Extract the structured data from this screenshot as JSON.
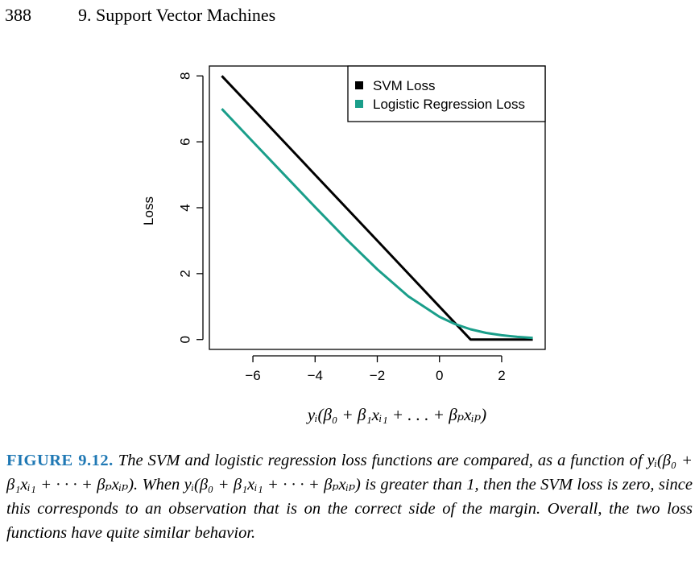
{
  "header": {
    "page_number": "388",
    "chapter_title": "9. Support Vector Machines"
  },
  "chart_data": {
    "type": "line",
    "xlabel": "yᵢ(β₀ + β₁xᵢ₁ + . . . + βₚxᵢₚ)",
    "ylabel": "Loss",
    "xlim": [
      -7.4,
      3.4
    ],
    "ylim": [
      -0.3,
      8.3
    ],
    "xticks": [
      -6,
      -4,
      -2,
      0,
      2
    ],
    "xtick_labels": [
      "−6",
      "−4",
      "−2",
      "0",
      "2"
    ],
    "yticks": [
      0,
      2,
      4,
      6,
      8
    ],
    "ytick_labels": [
      "0",
      "2",
      "4",
      "6",
      "8"
    ],
    "grid": false,
    "legend_position": "top-right",
    "series": [
      {
        "name": "SVM Loss",
        "color": "#000000",
        "x": [
          -7,
          -6,
          -5,
          -4,
          -3,
          -2,
          -1,
          0,
          1,
          2,
          3
        ],
        "y": [
          8,
          7,
          6,
          5,
          4,
          3,
          2,
          1,
          0,
          0,
          0
        ]
      },
      {
        "name": "Logistic Regression Loss",
        "color": "#1a9e8a",
        "x": [
          -7,
          -6,
          -5,
          -4,
          -3,
          -2,
          -1,
          0,
          0.5,
          1,
          1.5,
          2,
          2.5,
          3
        ],
        "y": [
          7.0,
          6.0,
          5.01,
          4.02,
          3.05,
          2.13,
          1.31,
          0.69,
          0.47,
          0.31,
          0.2,
          0.13,
          0.08,
          0.05
        ]
      }
    ]
  },
  "caption": {
    "label": "FIGURE 9.12.",
    "text": " The SVM and logistic regression loss functions are compared, as a function of yᵢ(β₀ + β₁xᵢ₁ + · · · + βₚxᵢₚ). When yᵢ(β₀ + β₁xᵢ₁ + · · · + βₚxᵢₚ) is greater than 1, then the SVM loss is zero, since this corresponds to an observation that is on the correct side of the margin. Overall, the two loss functions have quite similar behavior."
  }
}
